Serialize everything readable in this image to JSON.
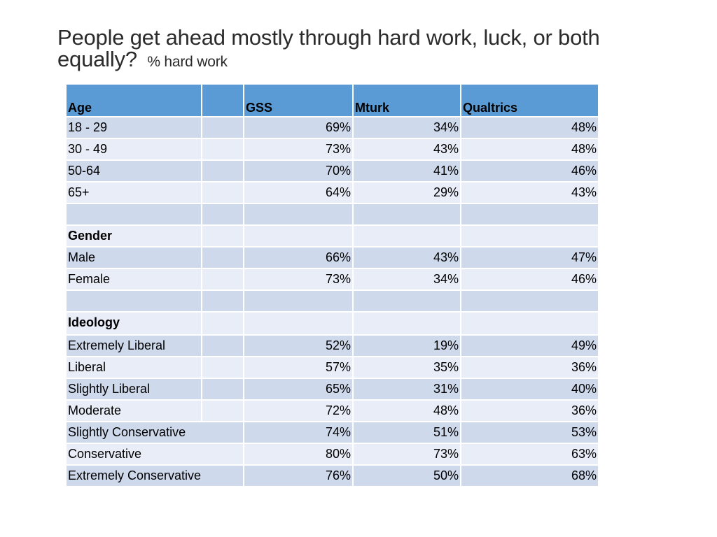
{
  "title": {
    "main": "People get ahead mostly through hard work, luck, or both equally?",
    "sub": "% hard work"
  },
  "table": {
    "headers": [
      "Age",
      "",
      "GSS",
      "Mturk",
      "Qualtrics"
    ],
    "rows": [
      {
        "label": "18 - 29",
        "gss": "69%",
        "mturk": "34%",
        "qualtrics": "48%"
      },
      {
        "label": "30 - 49",
        "gss": "73%",
        "mturk": "43%",
        "qualtrics": "48%"
      },
      {
        "label": "50-64",
        "gss": "70%",
        "mturk": "41%",
        "qualtrics": "46%"
      },
      {
        "label": "65+",
        "gss": "64%",
        "mturk": "29%",
        "qualtrics": "43%"
      },
      {
        "label": "",
        "gss": "",
        "mturk": "",
        "qualtrics": ""
      },
      {
        "label": "Gender",
        "gss": "",
        "mturk": "",
        "qualtrics": ""
      },
      {
        "label": "Male",
        "gss": "66%",
        "mturk": "43%",
        "qualtrics": "47%"
      },
      {
        "label": "Female",
        "gss": "73%",
        "mturk": "34%",
        "qualtrics": "46%"
      },
      {
        "label": "",
        "gss": "",
        "mturk": "",
        "qualtrics": ""
      },
      {
        "label": "Ideology",
        "gss": "",
        "mturk": "",
        "qualtrics": ""
      },
      {
        "label": "Extremely Liberal",
        "gss": "52%",
        "mturk": "19%",
        "qualtrics": "49%"
      },
      {
        "label": "Liberal",
        "gss": "57%",
        "mturk": "35%",
        "qualtrics": "36%"
      },
      {
        "label": "Slightly Liberal",
        "gss": "65%",
        "mturk": "31%",
        "qualtrics": "40%"
      },
      {
        "label": "Moderate",
        "gss": "72%",
        "mturk": "48%",
        "qualtrics": "36%"
      },
      {
        "label": "Slightly Conservative",
        "gss": "74%",
        "mturk": "51%",
        "qualtrics": "53%"
      },
      {
        "label": "Conservative",
        "gss": "80%",
        "mturk": "73%",
        "qualtrics": "63%"
      },
      {
        "label": "Extremely Conservative",
        "gss": "76%",
        "mturk": "50%",
        "qualtrics": "68%"
      }
    ]
  },
  "colors": {
    "header_fill": "#5b9bd5",
    "row_fill_dark": "#cfd9ec",
    "row_fill_light": "#e8edf7"
  }
}
